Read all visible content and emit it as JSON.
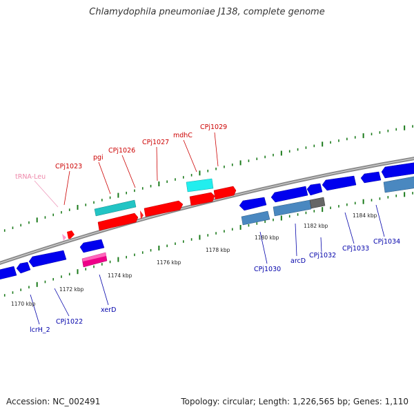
{
  "title": "Chlamydophila pneumoniae J138, complete genome",
  "accession": "Accession: NC_002491",
  "topology": "Topology: circular; Length: 1,226,565 bp; Genes: 1,110",
  "colors": {
    "forward_label": "#cc0000",
    "reverse_label": "#0000aa",
    "trna_label": "#ee88aa",
    "backbone": "#888888",
    "tick": "#1a7a1a"
  },
  "kbp_labels": [
    "1170 kbp",
    "1172 kbp",
    "1174 kbp",
    "1176 kbp",
    "1178 kbp",
    "1180 kbp",
    "1182 kbp",
    "1184 kbp"
  ],
  "forward_genes": [
    {
      "label": "tRNA-Leu",
      "color": "#ee88aa"
    },
    {
      "label": "CPj1023",
      "color": "#cc0000"
    },
    {
      "label": "pgi",
      "color": "#cc0000"
    },
    {
      "label": "CPj1026",
      "color": "#cc0000"
    },
    {
      "label": "CPj1027",
      "color": "#cc0000"
    },
    {
      "label": "mdhC",
      "color": "#cc0000"
    },
    {
      "label": "CPj1029",
      "color": "#cc0000"
    }
  ],
  "reverse_genes": [
    {
      "label": "lcrH_2"
    },
    {
      "label": "CPj1022"
    },
    {
      "label": "xerD"
    },
    {
      "label": "CPj1030"
    },
    {
      "label": "arcD"
    },
    {
      "label": "CPj1032"
    },
    {
      "label": "CPj1033"
    },
    {
      "label": "CPj1034"
    }
  ]
}
